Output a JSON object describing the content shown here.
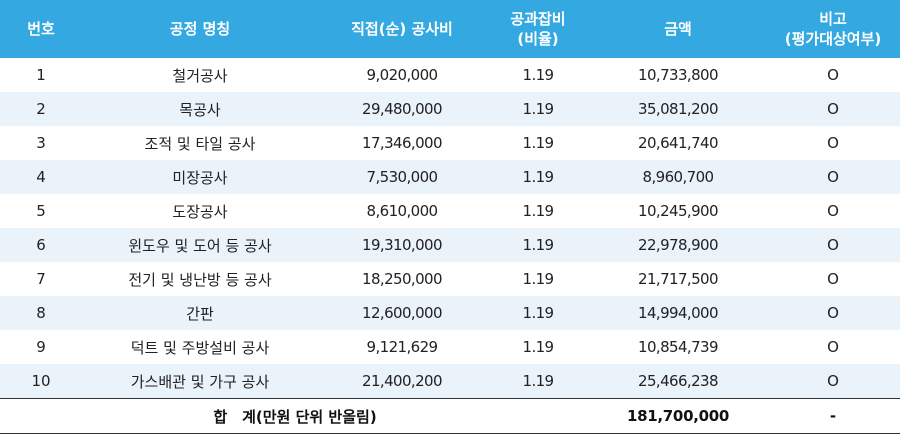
{
  "header": {
    "no": "번호",
    "name": "공정 명칭",
    "direct_cost": "직접(순) 공사비",
    "overhead_line1": "공과잡비",
    "overhead_line2": "(비율)",
    "amount": "금액",
    "note_line1": "비고",
    "note_line2": "(평가대상여부)"
  },
  "rows": [
    {
      "no": "1",
      "name": "철거공사",
      "direct_cost": "9,020,000",
      "ratio": "1.19",
      "amount": "10,733,800",
      "note": "O"
    },
    {
      "no": "2",
      "name": "목공사",
      "direct_cost": "29,480,000",
      "ratio": "1.19",
      "amount": "35,081,200",
      "note": "O"
    },
    {
      "no": "3",
      "name": "조적 및 타일 공사",
      "direct_cost": "17,346,000",
      "ratio": "1.19",
      "amount": "20,641,740",
      "note": "O"
    },
    {
      "no": "4",
      "name": "미장공사",
      "direct_cost": "7,530,000",
      "ratio": "1.19",
      "amount": "8,960,700",
      "note": "O"
    },
    {
      "no": "5",
      "name": "도장공사",
      "direct_cost": "8,610,000",
      "ratio": "1.19",
      "amount": "10,245,900",
      "note": "O"
    },
    {
      "no": "6",
      "name": "윈도우 및 도어 등 공사",
      "direct_cost": "19,310,000",
      "ratio": "1.19",
      "amount": "22,978,900",
      "note": "O"
    },
    {
      "no": "7",
      "name": "전기 및 냉난방 등 공사",
      "direct_cost": "18,250,000",
      "ratio": "1.19",
      "amount": "21,717,500",
      "note": "O"
    },
    {
      "no": "8",
      "name": "간판",
      "direct_cost": "12,600,000",
      "ratio": "1.19",
      "amount": "14,994,000",
      "note": "O"
    },
    {
      "no": "9",
      "name": "덕트 및 주방설비 공사",
      "direct_cost": "9,121,629",
      "ratio": "1.19",
      "amount": "10,854,739",
      "note": "O"
    },
    {
      "no": "10",
      "name": "가스배관 및 가구 공사",
      "direct_cost": "21,400,200",
      "ratio": "1.19",
      "amount": "25,466,238",
      "note": "O"
    }
  ],
  "total": {
    "label": "합　계(만원 단위 반올림)",
    "amount": "181,700,000",
    "note": "-"
  }
}
